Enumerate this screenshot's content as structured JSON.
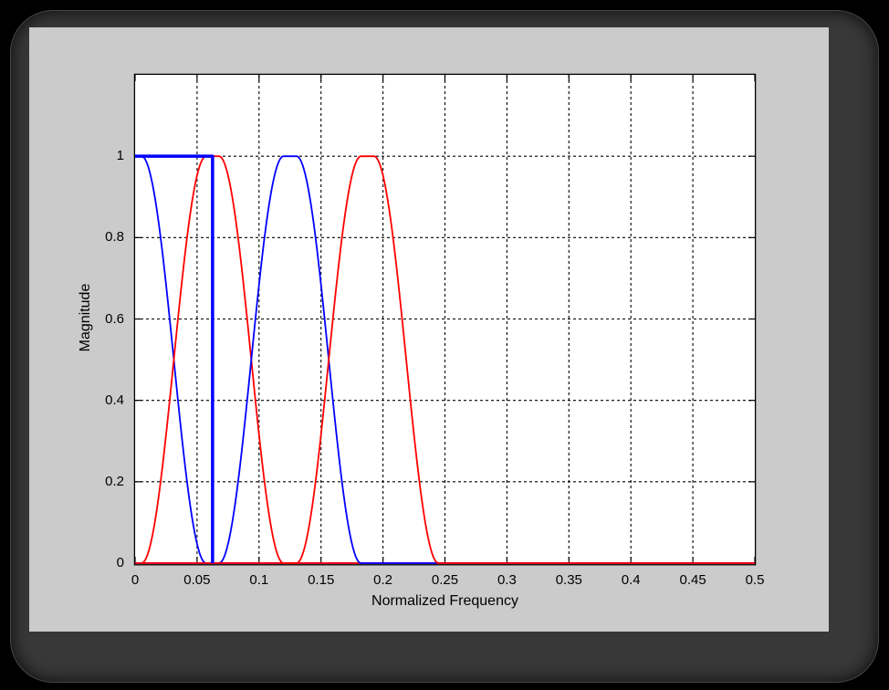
{
  "window": {
    "background_color": "#000000",
    "frame_color": "#383838",
    "figure_background": "#cbcbcb"
  },
  "chart_data": {
    "type": "line",
    "title": "",
    "xlabel": "Normalized Frequency",
    "ylabel": "Magnitude",
    "xlim": [
      0,
      0.5
    ],
    "ylim": [
      0,
      1.2
    ],
    "grid": "on",
    "grid_style": "dotted",
    "grid_color": "#000000",
    "legend": "none",
    "plot_bg": "#ffffff",
    "axis_color": "#000000",
    "xticks": [
      {
        "value": 0,
        "label": "0"
      },
      {
        "value": 0.05,
        "label": "0.05"
      },
      {
        "value": 0.1,
        "label": "0.1"
      },
      {
        "value": 0.15,
        "label": "0.15"
      },
      {
        "value": 0.2,
        "label": "0.2"
      },
      {
        "value": 0.25,
        "label": "0.25"
      },
      {
        "value": 0.3,
        "label": "0.3"
      },
      {
        "value": 0.35,
        "label": "0.35"
      },
      {
        "value": 0.4,
        "label": "0.4"
      },
      {
        "value": 0.45,
        "label": "0.45"
      },
      {
        "value": 0.5,
        "label": "0.5"
      }
    ],
    "yticks": [
      {
        "value": 0,
        "label": "0"
      },
      {
        "value": 0.2,
        "label": "0.2"
      },
      {
        "value": 0.4,
        "label": "0.4"
      },
      {
        "value": 0.6,
        "label": "0.6"
      },
      {
        "value": 0.8,
        "label": "0.8"
      },
      {
        "value": 1,
        "label": "1"
      }
    ],
    "peak_magnitude": 1,
    "band_centers": [
      0,
      0.0625,
      0.125,
      0.1875
    ],
    "ideal_cutoff": 0.0625,
    "transition_shape": "raised-cosine",
    "series": [
      {
        "name": "lowpass-band-blue",
        "color": "#0000ff",
        "line_width": 1.8,
        "type": "band",
        "rise": null,
        "fall": [
          0.00525,
          0.05725
        ]
      },
      {
        "name": "bandpass-1-red",
        "color": "#ff0000",
        "line_width": 1.8,
        "type": "band",
        "rise": [
          0.00525,
          0.05725
        ],
        "fall": [
          0.06775,
          0.11975
        ]
      },
      {
        "name": "bandpass-2-blue",
        "color": "#0000ff",
        "line_width": 1.8,
        "type": "band",
        "rise": [
          0.06775,
          0.11975
        ],
        "fall": [
          0.13025,
          0.18225
        ]
      },
      {
        "name": "bandpass-3-red",
        "color": "#ff0000",
        "line_width": 1.8,
        "type": "band",
        "rise": [
          0.13025,
          0.18225
        ],
        "fall": [
          0.19275,
          0.24475
        ]
      },
      {
        "name": "ideal-brickwall-filter-blue",
        "color": "#0000ff",
        "line_width": 3.5,
        "type": "polyline",
        "points": [
          [
            0,
            1
          ],
          [
            0.0625,
            1
          ],
          [
            0.0625,
            0
          ]
        ]
      }
    ]
  }
}
